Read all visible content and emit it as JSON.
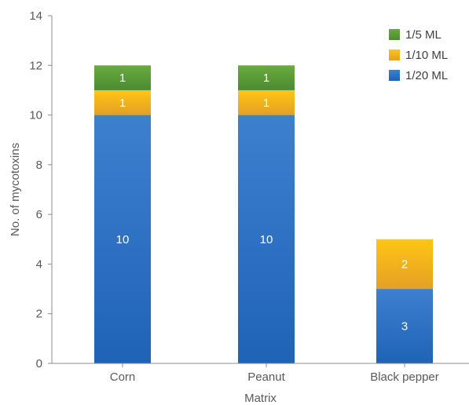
{
  "chart_data": {
    "type": "bar",
    "stacked": true,
    "categories": [
      "Corn",
      "Peanut",
      "Black pepper"
    ],
    "series": [
      {
        "name": "1/20 ML",
        "values": [
          10,
          10,
          3
        ],
        "color": "#2e6fc4"
      },
      {
        "name": "1/10 ML",
        "values": [
          1,
          1,
          2
        ],
        "color": "#f2b318"
      },
      {
        "name": "1/5 ML",
        "values": [
          1,
          1,
          null
        ],
        "color": "#5f9e38"
      }
    ],
    "legend_order": [
      "1/5 ML",
      "1/10 ML",
      "1/20 ML"
    ],
    "title": "",
    "xlabel": "Matrix",
    "ylabel": "No. of mycotoxins",
    "ylim": [
      0,
      14
    ],
    "yticks": [
      0,
      2,
      4,
      6,
      8,
      10,
      12,
      14
    ],
    "grid": false,
    "legend_position": "top-right"
  }
}
